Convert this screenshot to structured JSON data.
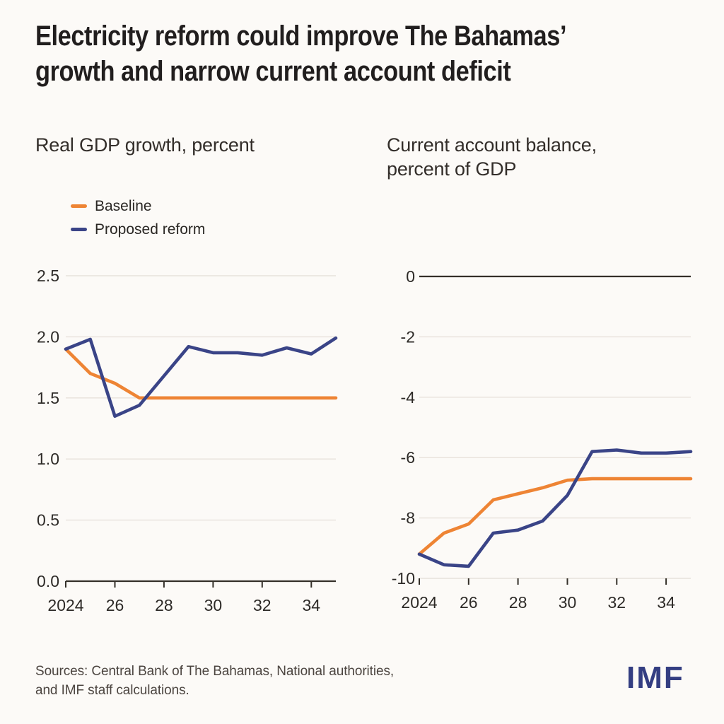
{
  "header": {
    "title": "Electricity reform could improve The Bahamas’ growth and narrow current account deficit",
    "title_lines": [
      "Electricity reform could improve The Bahamas’",
      "growth and narrow current account deficit"
    ]
  },
  "colors": {
    "baseline": "#EE8434",
    "reform": "#3A4487",
    "grid": "#E7E1DB",
    "axis": "#343029",
    "tick_text": "#2D2A27",
    "title_text": "#211E1E",
    "imf_logo": "#343E82",
    "background": "#FCFAF7"
  },
  "footer": {
    "sources_lines": [
      "Sources: Central Bank of The Bahamas, National authorities,",
      "and IMF staff calculations."
    ],
    "logo": "IMF"
  },
  "chart_data": [
    {
      "type": "line",
      "title": "Real GDP growth, percent",
      "title_lines": [
        "Real GDP growth, percent"
      ],
      "legend_position": "top-left",
      "legend_entries": [
        "Baseline",
        "Proposed reform"
      ],
      "x": [
        2024,
        2025,
        2026,
        2027,
        2028,
        2029,
        2030,
        2031,
        2032,
        2033,
        2034,
        2035
      ],
      "series": [
        {
          "name": "Baseline",
          "color": "#EE8434",
          "values": [
            1.9,
            1.7,
            1.62,
            1.5,
            1.5,
            1.5,
            1.5,
            1.5,
            1.5,
            1.5,
            1.5,
            1.5
          ]
        },
        {
          "name": "Proposed reform",
          "color": "#3A4487",
          "values": [
            1.9,
            1.98,
            1.35,
            1.44,
            1.68,
            1.92,
            1.87,
            1.87,
            1.85,
            1.91,
            1.86,
            1.99
          ]
        }
      ],
      "ylim": [
        0,
        2.5
      ],
      "yticks": [
        0,
        0.5,
        1,
        1.5,
        2,
        2.5
      ],
      "ytick_labels": [
        "0.0",
        "0.5",
        "1.0",
        "1.5",
        "2.0",
        "2.5"
      ],
      "dark_line_at": 0,
      "xticks": [
        2024,
        2026,
        2028,
        2030,
        2032,
        2034
      ],
      "xtick_labels": [
        "2024",
        "26",
        "28",
        "30",
        "32",
        "34"
      ],
      "grid": true
    },
    {
      "type": "line",
      "title": "Current account balance, percent of GDP",
      "title_lines": [
        "Current account balance,",
        "percent of GDP"
      ],
      "x": [
        2024,
        2025,
        2026,
        2027,
        2028,
        2029,
        2030,
        2031,
        2032,
        2033,
        2034,
        2035
      ],
      "series": [
        {
          "name": "Baseline",
          "color": "#EE8434",
          "values": [
            -9.2,
            -8.5,
            -8.2,
            -7.4,
            -7.2,
            -7.0,
            -6.75,
            -6.7,
            -6.7,
            -6.7,
            -6.7,
            -6.7
          ]
        },
        {
          "name": "Proposed reform",
          "color": "#3A4487",
          "values": [
            -9.2,
            -9.55,
            -9.6,
            -8.5,
            -8.4,
            -8.1,
            -7.25,
            -5.8,
            -5.75,
            -5.85,
            -5.85,
            -5.8
          ]
        }
      ],
      "ylim": [
        -10,
        0
      ],
      "yticks": [
        0,
        -2,
        -4,
        -6,
        -8,
        -10
      ],
      "ytick_labels": [
        "0",
        "-2",
        "-4",
        "-6",
        "-8",
        "-10"
      ],
      "dark_line_at": 0,
      "xticks": [
        2024,
        2026,
        2028,
        2030,
        2032,
        2034
      ],
      "xtick_labels": [
        "2024",
        "26",
        "28",
        "30",
        "32",
        "34"
      ],
      "grid": true
    }
  ]
}
